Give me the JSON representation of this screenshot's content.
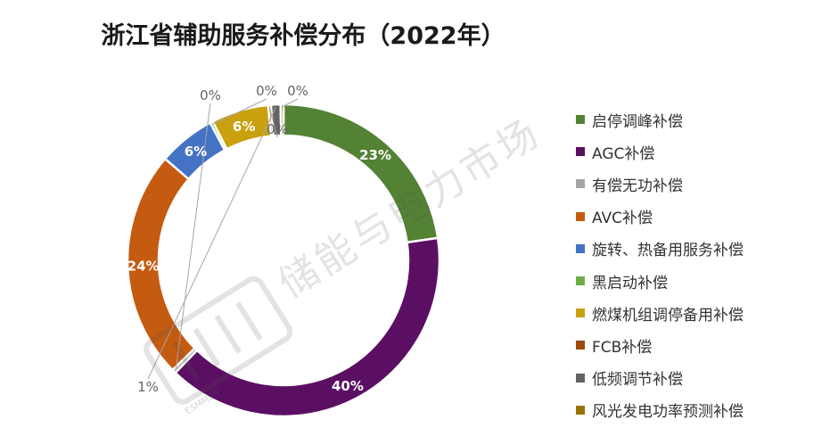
{
  "chart_data": {
    "type": "donut",
    "title": "浙江省辅助服务补偿分布（2022年）",
    "series": [
      {
        "name": "启停调峰补偿",
        "value": 23,
        "label": "23%",
        "color": "#548235"
      },
      {
        "name": "AGC补偿",
        "value": 40,
        "label": "40%",
        "color": "#5b0f63"
      },
      {
        "name": "有偿无功补偿",
        "value": 0.4,
        "label": "0%",
        "color": "#a5a5a5"
      },
      {
        "name": "AVC补偿",
        "value": 24,
        "label": "24%",
        "color": "#c55a11"
      },
      {
        "name": "旋转、热备用服务补偿",
        "value": 6,
        "label": "6%",
        "color": "#4472c4"
      },
      {
        "name": "黑启动补偿",
        "value": 0.3,
        "label": "0%",
        "color": "#70ad47"
      },
      {
        "name": "燃煤机组调停备用补偿",
        "value": 6,
        "label": "6%",
        "color": "#c9a00e"
      },
      {
        "name": "FCB补偿",
        "value": 0.3,
        "label": "0%",
        "color": "#9e480e"
      },
      {
        "name": "低频调节补偿",
        "value": 1,
        "label": "1%",
        "color": "#636363"
      },
      {
        "name": "风光发电功率预测补偿",
        "value": 0.3,
        "label": "0%",
        "color": "#997300"
      }
    ],
    "legend_position": "right"
  },
  "watermark": {
    "text": "储能与电力市场",
    "sub": "ESMMEN"
  }
}
